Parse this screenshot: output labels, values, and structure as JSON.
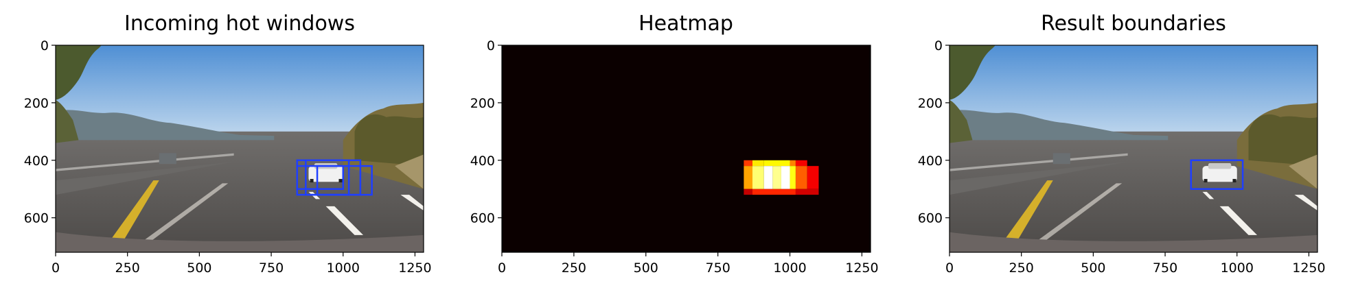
{
  "chart_data": [
    {
      "type": "image",
      "title": "Incoming hot windows",
      "xticks": [
        0,
        250,
        500,
        750,
        1000,
        1250
      ],
      "yticks": [
        0,
        200,
        400,
        600
      ],
      "xlim": [
        0,
        1280
      ],
      "ylim": [
        720,
        0
      ],
      "image": "dashcam road scene, white car on right lane",
      "boxes": [
        {
          "x0": 840,
          "y0": 400,
          "x1": 1020,
          "y1": 520
        },
        {
          "x0": 870,
          "y0": 400,
          "x1": 1060,
          "y1": 520
        },
        {
          "x0": 910,
          "y0": 420,
          "x1": 1100,
          "y1": 520
        },
        {
          "x0": 840,
          "y0": 420,
          "x1": 1000,
          "y1": 500
        }
      ],
      "box_color": "#1f3fff"
    },
    {
      "type": "heatmap",
      "title": "Heatmap",
      "xticks": [
        0,
        250,
        500,
        750,
        1000,
        1250
      ],
      "yticks": [
        0,
        200,
        400,
        600
      ],
      "xlim": [
        0,
        1280
      ],
      "ylim": [
        720,
        0
      ],
      "background_color": "#0b0000",
      "cells": [
        {
          "x0": 840,
          "x1": 870,
          "y0": 400,
          "y1": 420,
          "v": 0.45
        },
        {
          "x0": 870,
          "x1": 910,
          "y0": 400,
          "y1": 420,
          "v": 0.7
        },
        {
          "x0": 910,
          "x1": 1000,
          "y0": 400,
          "y1": 420,
          "v": 0.72
        },
        {
          "x0": 1000,
          "x1": 1020,
          "y0": 400,
          "y1": 420,
          "v": 0.55
        },
        {
          "x0": 1020,
          "x1": 1060,
          "y0": 400,
          "y1": 420,
          "v": 0.35
        },
        {
          "x0": 840,
          "x1": 870,
          "y0": 420,
          "y1": 500,
          "v": 0.6
        },
        {
          "x0": 870,
          "x1": 910,
          "y0": 420,
          "y1": 500,
          "v": 0.85
        },
        {
          "x0": 910,
          "x1": 940,
          "y0": 420,
          "y1": 500,
          "v": 1.0
        },
        {
          "x0": 940,
          "x1": 970,
          "y0": 420,
          "y1": 500,
          "v": 0.88
        },
        {
          "x0": 970,
          "x1": 1000,
          "y0": 420,
          "y1": 500,
          "v": 1.0
        },
        {
          "x0": 1000,
          "x1": 1020,
          "y0": 420,
          "y1": 500,
          "v": 0.75
        },
        {
          "x0": 1020,
          "x1": 1060,
          "y0": 420,
          "y1": 500,
          "v": 0.5
        },
        {
          "x0": 1060,
          "x1": 1100,
          "y0": 420,
          "y1": 500,
          "v": 0.35
        },
        {
          "x0": 840,
          "x1": 870,
          "y0": 500,
          "y1": 520,
          "v": 0.28
        },
        {
          "x0": 870,
          "x1": 1020,
          "y0": 500,
          "y1": 520,
          "v": 0.42
        },
        {
          "x0": 1020,
          "x1": 1100,
          "y0": 500,
          "y1": 520,
          "v": 0.3
        }
      ]
    },
    {
      "type": "image",
      "title": "Result boundaries",
      "xticks": [
        0,
        250,
        500,
        750,
        1000,
        1250
      ],
      "yticks": [
        0,
        200,
        400,
        600
      ],
      "xlim": [
        0,
        1280
      ],
      "ylim": [
        720,
        0
      ],
      "image": "dashcam road scene, white car on right lane",
      "boxes": [
        {
          "x0": 840,
          "y0": 400,
          "x1": 1020,
          "y1": 500
        }
      ],
      "box_color": "#1f3fff"
    }
  ]
}
